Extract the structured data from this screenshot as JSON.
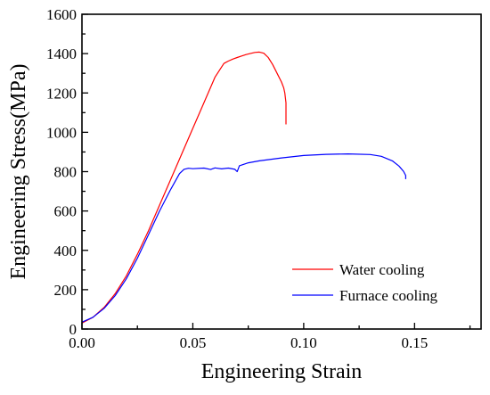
{
  "chart_data": {
    "type": "line",
    "title": "",
    "xlabel": "Engineering Strain",
    "ylabel": "Engineering Stress(MPa)",
    "xlim": [
      0,
      0.18
    ],
    "ylim": [
      0,
      1600
    ],
    "xticks": [
      0.0,
      0.05,
      0.1,
      0.15
    ],
    "xtick_labels": [
      "0.00",
      "0.05",
      "0.10",
      "0.15"
    ],
    "yticks": [
      0,
      200,
      400,
      600,
      800,
      1000,
      1200,
      1400,
      1600
    ],
    "ytick_labels": [
      "0",
      "200",
      "400",
      "600",
      "800",
      "1000",
      "1200",
      "1400",
      "1600"
    ],
    "grid": false,
    "legend_position": "bottom-right",
    "series": [
      {
        "name": "Water cooling",
        "color": "#ff0000",
        "x": [
          0.0,
          0.005,
          0.01,
          0.015,
          0.02,
          0.025,
          0.03,
          0.035,
          0.04,
          0.045,
          0.05,
          0.055,
          0.06,
          0.064,
          0.066,
          0.068,
          0.07,
          0.072,
          0.074,
          0.076,
          0.078,
          0.08,
          0.082,
          0.084,
          0.086,
          0.088,
          0.09,
          0.091,
          0.0915,
          0.092,
          0.092
        ],
        "y": [
          30,
          60,
          110,
          180,
          270,
          380,
          500,
          630,
          760,
          890,
          1020,
          1150,
          1280,
          1350,
          1362,
          1372,
          1380,
          1388,
          1395,
          1401,
          1406,
          1408,
          1402,
          1380,
          1345,
          1300,
          1255,
          1225,
          1200,
          1150,
          1040
        ]
      },
      {
        "name": "Furnace cooling",
        "color": "#0000ff",
        "x": [
          0.0,
          0.005,
          0.01,
          0.015,
          0.02,
          0.025,
          0.03,
          0.035,
          0.04,
          0.044,
          0.046,
          0.048,
          0.05,
          0.055,
          0.058,
          0.06,
          0.063,
          0.066,
          0.069,
          0.07,
          0.0705,
          0.071,
          0.075,
          0.08,
          0.09,
          0.1,
          0.11,
          0.12,
          0.13,
          0.135,
          0.14,
          0.143,
          0.145,
          0.146,
          0.146
        ],
        "y": [
          35,
          60,
          105,
          170,
          255,
          360,
          480,
          600,
          710,
          790,
          812,
          817,
          815,
          818,
          811,
          819,
          814,
          818,
          812,
          800,
          815,
          830,
          845,
          855,
          870,
          882,
          888,
          890,
          887,
          878,
          855,
          828,
          802,
          780,
          762
        ]
      }
    ]
  }
}
